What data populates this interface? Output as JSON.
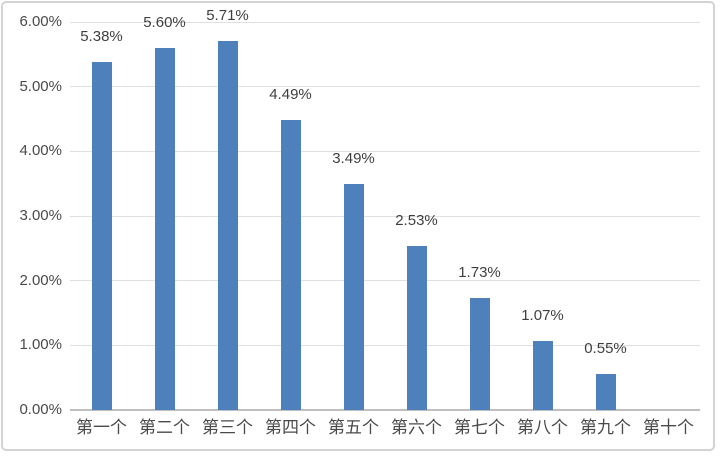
{
  "chart_data": {
    "type": "bar",
    "title": "",
    "xlabel": "",
    "ylabel": "",
    "categories": [
      "第一个",
      "第二个",
      "第三个",
      "第四个",
      "第五个",
      "第六个",
      "第七个",
      "第八个",
      "第九个",
      "第十个"
    ],
    "values": [
      5.38,
      5.6,
      5.71,
      4.49,
      3.49,
      2.53,
      1.73,
      1.07,
      0.55,
      0
    ],
    "data_labels": [
      "5.38%",
      "5.60%",
      "5.71%",
      "4.49%",
      "3.49%",
      "2.53%",
      "1.73%",
      "1.07%",
      "0.55%",
      ""
    ],
    "y_tick_labels": [
      "0.00%",
      "1.00%",
      "2.00%",
      "3.00%",
      "4.00%",
      "5.00%",
      "6.00%"
    ],
    "ylim": [
      0,
      6
    ],
    "y_tick_step": 1,
    "grid": true,
    "legend": "none",
    "colors": {
      "bar": "#4e80bc",
      "gridline": "#e0e0e0",
      "axis_line": "#bfbfbf",
      "data_label_text": "#3f3f3f",
      "tick_label_text": "#4a4a4a",
      "frame_border": "#d3d3d3",
      "background": "#ffffff"
    }
  }
}
